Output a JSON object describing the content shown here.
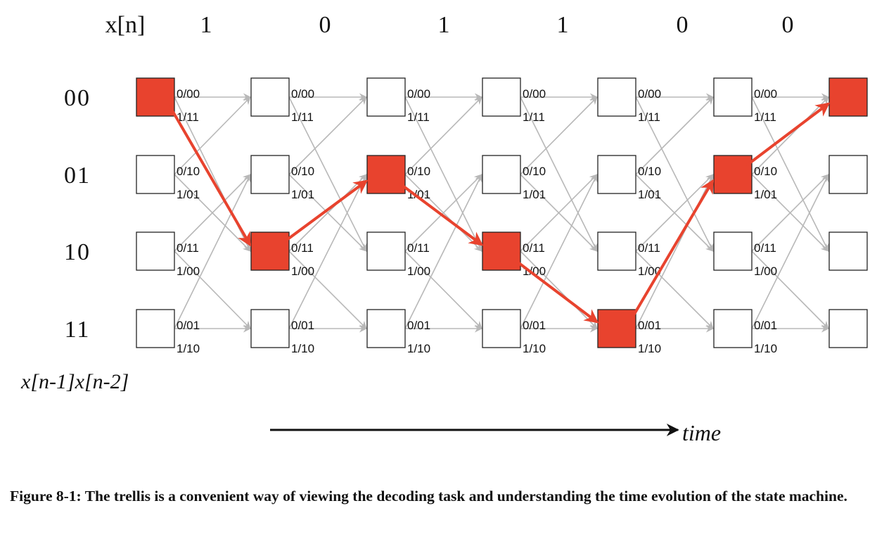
{
  "input_label": "x[n]",
  "input_bits": [
    "1",
    "0",
    "1",
    "1",
    "0",
    "0"
  ],
  "states": [
    "00",
    "01",
    "10",
    "11"
  ],
  "state_axis_label": "x[n-1]x[n-2]",
  "time_label": "time",
  "edge_labels": {
    "00": [
      "0/00",
      "1/11"
    ],
    "01": [
      "0/10",
      "1/01"
    ],
    "10": [
      "0/11",
      "1/00"
    ],
    "11": [
      "0/01",
      "1/10"
    ]
  },
  "path_states": [
    "00",
    "10",
    "01",
    "10",
    "11",
    "01",
    "00"
  ],
  "colors": {
    "highlight_fill": "#e8432e",
    "highlight_edge": "#e8432e",
    "edge_gray": "#b8b8b8",
    "box_border": "#222222",
    "text": "#111111"
  },
  "caption": "Figure 8-1: The trellis is a convenient way of viewing the decoding task and understanding the time evolution of the state machine."
}
